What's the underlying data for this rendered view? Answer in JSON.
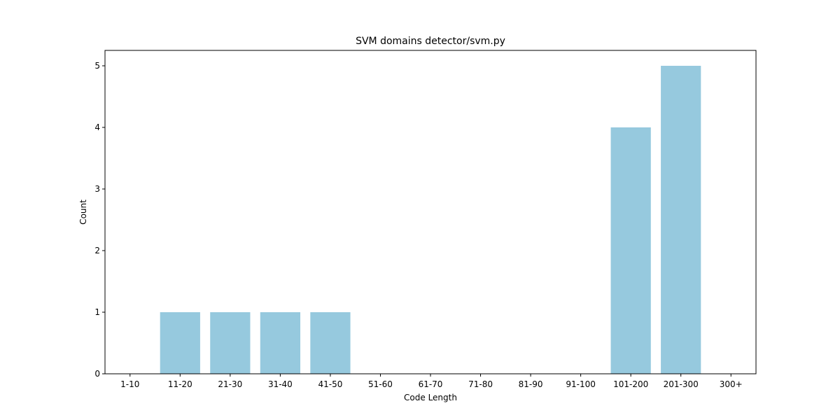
{
  "chart_data": {
    "type": "bar",
    "title": "SVM domains detector/svm.py",
    "xlabel": "Code Length",
    "ylabel": "Count",
    "categories": [
      "1-10",
      "11-20",
      "21-30",
      "31-40",
      "41-50",
      "51-60",
      "61-70",
      "71-80",
      "81-90",
      "91-100",
      "101-200",
      "201-300",
      "300+"
    ],
    "values": [
      0,
      1,
      1,
      1,
      1,
      0,
      0,
      0,
      0,
      0,
      4,
      5,
      0
    ],
    "ylim": [
      0,
      5.25
    ],
    "yticks": [
      0,
      1,
      2,
      3,
      4,
      5
    ],
    "bar_color": "#96c9de",
    "grid": false,
    "legend": false
  }
}
